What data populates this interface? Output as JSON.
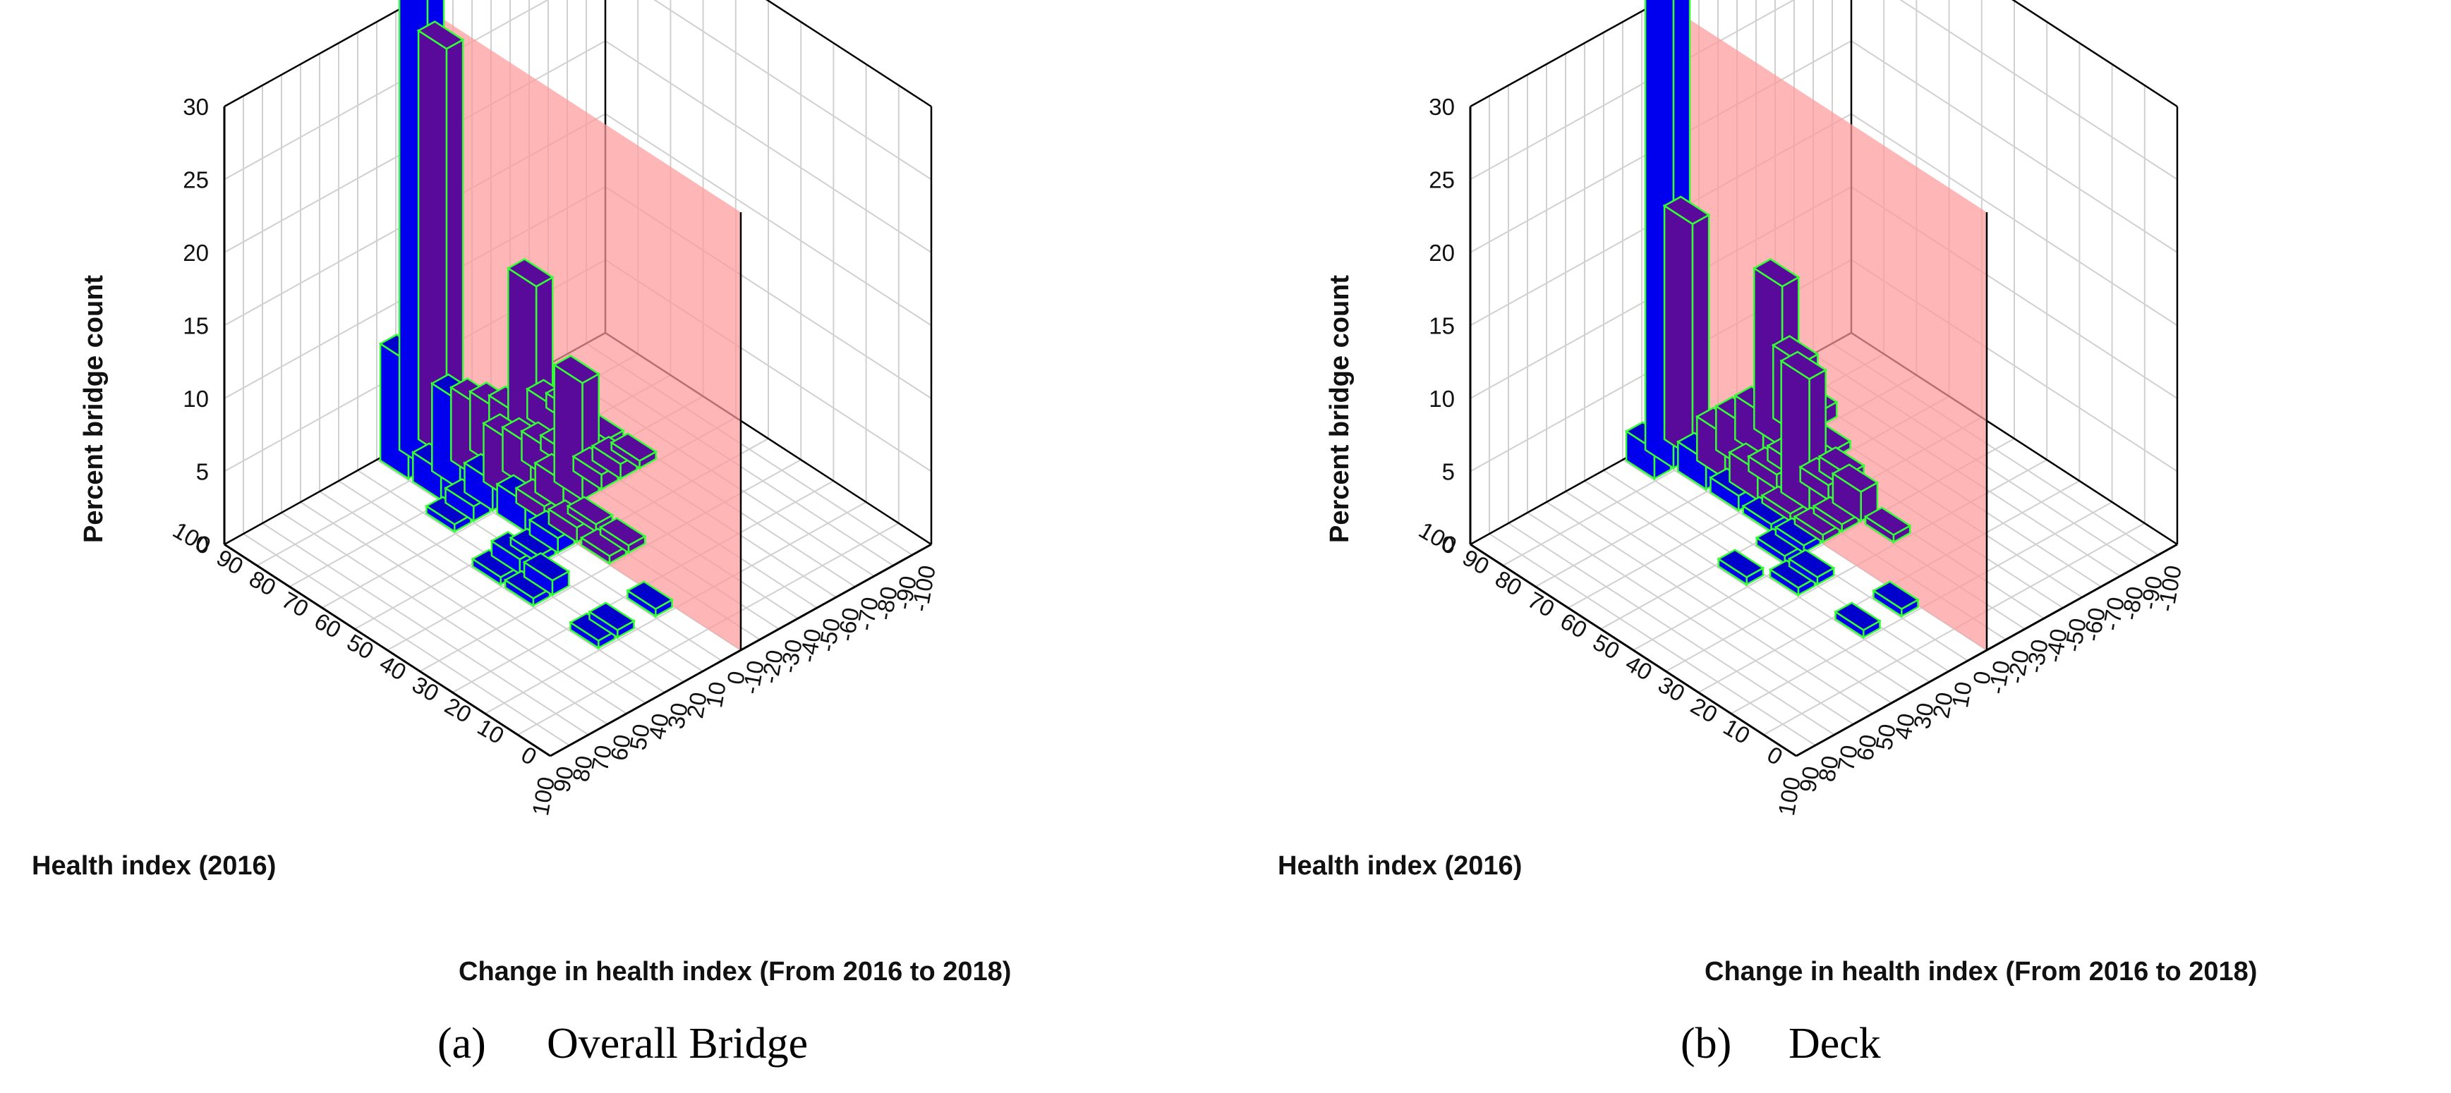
{
  "colors": {
    "bar_face": "#0000ee",
    "bar_top": "#0000cc",
    "bar_shaded": "#5a0a9a",
    "bar_edge": "#33ff33",
    "plane": "#ff9a9a",
    "grid": "#d0d0d0",
    "axis": "#000000"
  },
  "chart_data": [
    {
      "type": "bar3d",
      "panel": "a",
      "caption_letter": "(a)",
      "caption_text": "Overall Bridge",
      "zlabel": "Percent bridge count",
      "ylabel": "Health index (2016)",
      "xlabel": "Change in health index (From 2016 to 2018)",
      "zlim": [
        0,
        30
      ],
      "z_ticks": [
        "0",
        "5",
        "10",
        "15",
        "20",
        "25",
        "30"
      ],
      "y_ticks": [
        "0",
        "10",
        "20",
        "30",
        "40",
        "50",
        "60",
        "70",
        "80",
        "90",
        "100"
      ],
      "x_ticks": [
        "100",
        "90",
        "80",
        "70",
        "60",
        "50",
        "40",
        "30",
        "20",
        "10",
        "0",
        "-10",
        "-20",
        "-30",
        "-40",
        "-50",
        "-60",
        "-70",
        "-80",
        "-90",
        "-100"
      ],
      "reference_plane": "change = 0",
      "bars": [
        {
          "health": 95,
          "change": 5,
          "value": 34
        },
        {
          "health": 95,
          "change": -5,
          "value": 28
        },
        {
          "health": 95,
          "change": 15,
          "value": 8
        },
        {
          "health": 85,
          "change": 15,
          "value": 2
        },
        {
          "health": 85,
          "change": 5,
          "value": 6
        },
        {
          "health": 85,
          "change": -5,
          "value": 5
        },
        {
          "health": 85,
          "change": -15,
          "value": 4
        },
        {
          "health": 85,
          "change": -25,
          "value": 3
        },
        {
          "health": 85,
          "change": -35,
          "value": 11
        },
        {
          "health": 85,
          "change": -45,
          "value": 2
        },
        {
          "health": 85,
          "change": -55,
          "value": 1
        },
        {
          "health": 75,
          "change": 25,
          "value": 0.5
        },
        {
          "health": 75,
          "change": 15,
          "value": 1
        },
        {
          "health": 75,
          "change": 5,
          "value": 2
        },
        {
          "health": 75,
          "change": -5,
          "value": 4
        },
        {
          "health": 75,
          "change": -15,
          "value": 3
        },
        {
          "health": 75,
          "change": -25,
          "value": 2
        },
        {
          "health": 75,
          "change": -35,
          "value": 1
        },
        {
          "health": 75,
          "change": -45,
          "value": 1
        },
        {
          "health": 75,
          "change": -55,
          "value": 0.5
        },
        {
          "health": 65,
          "change": 5,
          "value": 2
        },
        {
          "health": 65,
          "change": -5,
          "value": 1
        },
        {
          "health": 65,
          "change": -15,
          "value": 2
        },
        {
          "health": 65,
          "change": -25,
          "value": 8
        },
        {
          "health": 65,
          "change": -35,
          "value": 1
        },
        {
          "health": 65,
          "change": -45,
          "value": 1
        },
        {
          "health": 65,
          "change": -55,
          "value": 0.5
        },
        {
          "health": 55,
          "change": 35,
          "value": 0.5
        },
        {
          "health": 55,
          "change": 25,
          "value": 1
        },
        {
          "health": 55,
          "change": 15,
          "value": 0.5
        },
        {
          "health": 55,
          "change": 5,
          "value": 1
        },
        {
          "health": 55,
          "change": -5,
          "value": 1
        },
        {
          "health": 55,
          "change": -15,
          "value": 0.5
        },
        {
          "health": 45,
          "change": 35,
          "value": 0.5
        },
        {
          "health": 45,
          "change": 25,
          "value": 1
        },
        {
          "health": 45,
          "change": -5,
          "value": 0.5
        },
        {
          "health": 45,
          "change": -15,
          "value": 0.5
        },
        {
          "health": 25,
          "change": 35,
          "value": 0.5
        },
        {
          "health": 25,
          "change": 25,
          "value": 0.5
        },
        {
          "health": 25,
          "change": 5,
          "value": 0.5
        }
      ]
    },
    {
      "type": "bar3d",
      "panel": "b",
      "caption_letter": "(b)",
      "caption_text": "Deck",
      "zlabel": "Percent bridge count",
      "ylabel": "Health index (2016)",
      "xlabel": "Change in health index (From 2016 to 2018)",
      "zlim": [
        0,
        30
      ],
      "z_ticks": [
        "0",
        "5",
        "10",
        "15",
        "20",
        "25",
        "30"
      ],
      "y_ticks": [
        "0",
        "10",
        "20",
        "30",
        "40",
        "50",
        "60",
        "70",
        "80",
        "90",
        "100"
      ],
      "x_ticks": [
        "100",
        "90",
        "80",
        "70",
        "60",
        "50",
        "40",
        "30",
        "20",
        "10",
        "0",
        "-10",
        "-20",
        "-30",
        "-40",
        "-50",
        "-60",
        "-70",
        "-80",
        "-90",
        "-100"
      ],
      "reference_plane": "change = 0",
      "bars": [
        {
          "health": 95,
          "change": 5,
          "value": 34
        },
        {
          "health": 95,
          "change": -5,
          "value": 16
        },
        {
          "health": 95,
          "change": 15,
          "value": 2
        },
        {
          "health": 85,
          "change": 5,
          "value": 2
        },
        {
          "health": 85,
          "change": -5,
          "value": 3
        },
        {
          "health": 85,
          "change": -15,
          "value": 3
        },
        {
          "health": 85,
          "change": -25,
          "value": 3
        },
        {
          "health": 85,
          "change": -35,
          "value": 11
        },
        {
          "health": 85,
          "change": -45,
          "value": 5
        },
        {
          "health": 85,
          "change": -55,
          "value": 1
        },
        {
          "health": 75,
          "change": 5,
          "value": 1
        },
        {
          "health": 75,
          "change": -5,
          "value": 2
        },
        {
          "health": 75,
          "change": -15,
          "value": 1
        },
        {
          "health": 75,
          "change": -25,
          "value": 1
        },
        {
          "health": 75,
          "change": -35,
          "value": 1
        },
        {
          "health": 75,
          "change": -45,
          "value": 0.5
        },
        {
          "health": 65,
          "change": 5,
          "value": 0.5
        },
        {
          "health": 65,
          "change": -5,
          "value": 0.5
        },
        {
          "health": 65,
          "change": -15,
          "value": 9
        },
        {
          "health": 65,
          "change": -25,
          "value": 1
        },
        {
          "health": 65,
          "change": -35,
          "value": 1
        },
        {
          "health": 55,
          "change": 35,
          "value": 0.5
        },
        {
          "health": 55,
          "change": 15,
          "value": 0.5
        },
        {
          "health": 55,
          "change": 5,
          "value": 0.5
        },
        {
          "health": 55,
          "change": -5,
          "value": 0.5
        },
        {
          "health": 55,
          "change": -15,
          "value": 0.5
        },
        {
          "health": 55,
          "change": -25,
          "value": 2
        },
        {
          "health": 45,
          "change": 25,
          "value": 0.5
        },
        {
          "health": 45,
          "change": 15,
          "value": 0.5
        },
        {
          "health": 45,
          "change": -25,
          "value": 0.5
        },
        {
          "health": 25,
          "change": 25,
          "value": 0.5
        },
        {
          "health": 25,
          "change": 5,
          "value": 0.5
        }
      ]
    }
  ]
}
